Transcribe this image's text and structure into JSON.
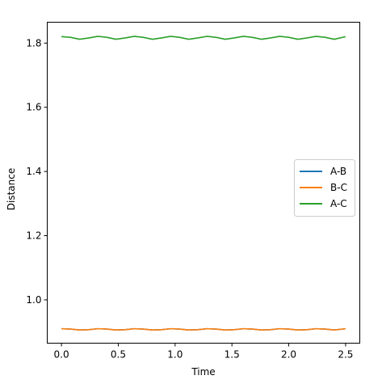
{
  "chart_data": {
    "type": "line",
    "title": "",
    "xlabel": "Time",
    "ylabel": "Distance",
    "xlim": [
      -0.125,
      2.625
    ],
    "ylim": [
      0.865,
      1.865
    ],
    "x_ticks": [
      0.0,
      0.5,
      1.0,
      1.5,
      2.0,
      2.5
    ],
    "x_tick_labels": [
      "0.0",
      "0.5",
      "1.0",
      "1.5",
      "2.0",
      "2.5"
    ],
    "y_ticks": [
      1.0,
      1.2,
      1.4,
      1.6,
      1.8
    ],
    "y_tick_labels": [
      "1.0",
      "1.2",
      "1.4",
      "1.6",
      "1.8"
    ],
    "grid": false,
    "legend_position": "center-right",
    "series": [
      {
        "name": "A-B",
        "color": "#1f77b4",
        "x": [
          0.0,
          0.08,
          0.16,
          0.24,
          0.32,
          0.4,
          0.48,
          0.56,
          0.64,
          0.72,
          0.8,
          0.88,
          0.96,
          1.04,
          1.12,
          1.2,
          1.28,
          1.36,
          1.44,
          1.52,
          1.6,
          1.68,
          1.76,
          1.84,
          1.92,
          2.0,
          2.08,
          2.16,
          2.24,
          2.32,
          2.4,
          2.5
        ],
        "y": [
          0.91,
          0.909,
          0.906,
          0.907,
          0.91,
          0.909,
          0.906,
          0.907,
          0.91,
          0.909,
          0.906,
          0.907,
          0.91,
          0.909,
          0.906,
          0.907,
          0.91,
          0.909,
          0.906,
          0.907,
          0.91,
          0.909,
          0.906,
          0.907,
          0.91,
          0.909,
          0.906,
          0.907,
          0.91,
          0.909,
          0.906,
          0.91
        ]
      },
      {
        "name": "B-C",
        "color": "#ff7f0e",
        "x": [
          0.0,
          0.08,
          0.16,
          0.24,
          0.32,
          0.4,
          0.48,
          0.56,
          0.64,
          0.72,
          0.8,
          0.88,
          0.96,
          1.04,
          1.12,
          1.2,
          1.28,
          1.36,
          1.44,
          1.52,
          1.6,
          1.68,
          1.76,
          1.84,
          1.92,
          2.0,
          2.08,
          2.16,
          2.24,
          2.32,
          2.4,
          2.5
        ],
        "y": [
          0.91,
          0.909,
          0.906,
          0.907,
          0.91,
          0.909,
          0.906,
          0.907,
          0.91,
          0.909,
          0.906,
          0.907,
          0.91,
          0.909,
          0.906,
          0.907,
          0.91,
          0.909,
          0.906,
          0.907,
          0.91,
          0.909,
          0.906,
          0.907,
          0.91,
          0.909,
          0.906,
          0.907,
          0.91,
          0.909,
          0.906,
          0.91
        ]
      },
      {
        "name": "A-C",
        "color": "#2ca02c",
        "x": [
          0.0,
          0.08,
          0.16,
          0.24,
          0.32,
          0.4,
          0.48,
          0.56,
          0.64,
          0.72,
          0.8,
          0.88,
          0.96,
          1.04,
          1.12,
          1.2,
          1.28,
          1.36,
          1.44,
          1.52,
          1.6,
          1.68,
          1.76,
          1.84,
          1.92,
          2.0,
          2.08,
          2.16,
          2.24,
          2.32,
          2.4,
          2.5
        ],
        "y": [
          1.82,
          1.818,
          1.812,
          1.816,
          1.821,
          1.818,
          1.812,
          1.816,
          1.821,
          1.818,
          1.812,
          1.816,
          1.821,
          1.818,
          1.812,
          1.816,
          1.821,
          1.818,
          1.812,
          1.816,
          1.821,
          1.818,
          1.812,
          1.816,
          1.821,
          1.818,
          1.812,
          1.816,
          1.821,
          1.818,
          1.812,
          1.82
        ]
      }
    ]
  }
}
